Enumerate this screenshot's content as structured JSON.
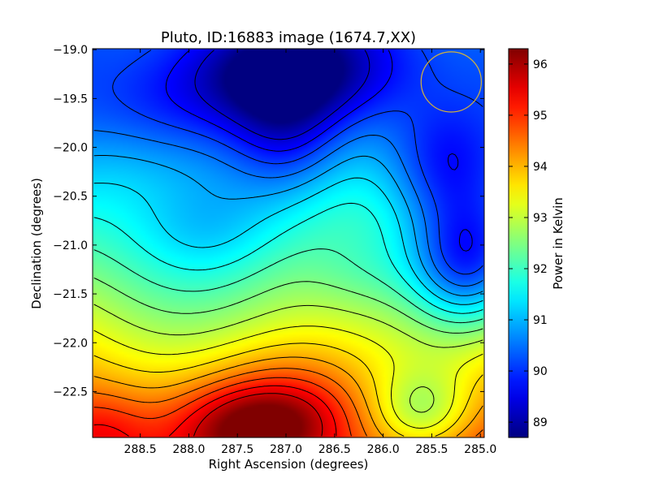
{
  "chart_data": {
    "type": "heatmap",
    "title": "Pluto, ID:16883 image (1674.7,XX)",
    "xlabel": "Right Ascension (degrees)",
    "ylabel": "Declination (degrees)",
    "colorbar_label": "Power in Kelvin",
    "x_range": [
      288.99,
      284.96
    ],
    "y_range": [
      -22.97,
      -18.99
    ],
    "x_ticks": [
      {
        "value": 288.5,
        "label": "288.5"
      },
      {
        "value": 288.0,
        "label": "288.0"
      },
      {
        "value": 287.5,
        "label": "287.5"
      },
      {
        "value": 287.0,
        "label": "287.0"
      },
      {
        "value": 286.5,
        "label": "286.5"
      },
      {
        "value": 286.0,
        "label": "286.0"
      },
      {
        "value": 285.5,
        "label": "285.5"
      },
      {
        "value": 285.0,
        "label": "285.0"
      }
    ],
    "y_ticks": [
      {
        "value": -19.0,
        "label": "−19.0"
      },
      {
        "value": -19.5,
        "label": "−19.5"
      },
      {
        "value": -20.0,
        "label": "−20.0"
      },
      {
        "value": -20.5,
        "label": "−20.5"
      },
      {
        "value": -21.0,
        "label": "−21.0"
      },
      {
        "value": -21.5,
        "label": "−21.5"
      },
      {
        "value": -22.0,
        "label": "−22.0"
      },
      {
        "value": -22.5,
        "label": "−22.5"
      }
    ],
    "colorbar_range": [
      88.7,
      96.3
    ],
    "colorbar_ticks": [
      {
        "value": 89,
        "label": "89"
      },
      {
        "value": 90,
        "label": "90"
      },
      {
        "value": 91,
        "label": "91"
      },
      {
        "value": 92,
        "label": "92"
      },
      {
        "value": 93,
        "label": "93"
      },
      {
        "value": 94,
        "label": "94"
      },
      {
        "value": 95,
        "label": "95"
      },
      {
        "value": 96,
        "label": "96"
      }
    ],
    "colormap": "jet",
    "contour_levels": [
      89.3,
      89.7,
      90.1,
      90.5,
      90.9,
      91.3,
      91.7,
      92.1,
      92.5,
      92.9,
      93.3,
      93.7,
      94.1,
      94.5,
      94.9,
      95.3,
      95.7
    ],
    "min_value": 88.7,
    "max_value": 96.3,
    "grid": false,
    "marker": {
      "type": "circle",
      "ra": 285.3,
      "dec": -19.33,
      "radius_deg": 0.31,
      "color": "#d4b43a"
    },
    "field_features": [
      {
        "type": "background_gradient",
        "top": 90.2,
        "bottom": 94.8
      },
      {
        "type": "peak",
        "ra": 287.25,
        "dec": -22.82,
        "value": 96.3,
        "sigma_ra": 0.55,
        "sigma_dec": 0.28
      },
      {
        "type": "peak",
        "ra": 288.9,
        "dec": -22.9,
        "value": 95.4,
        "sigma_ra": 0.35,
        "sigma_dec": 0.3
      },
      {
        "type": "peak",
        "ra": 286.9,
        "dec": -22.45,
        "value": 94.6,
        "sigma_ra": 0.6,
        "sigma_dec": 0.35
      },
      {
        "type": "trough",
        "ra": 287.0,
        "dec": -19.25,
        "value": 88.8,
        "sigma_ra": 0.75,
        "sigma_dec": 0.35
      },
      {
        "type": "trough",
        "ra": 287.0,
        "dec": -19.8,
        "value": 89.6,
        "sigma_ra": 0.4,
        "sigma_dec": 0.5
      },
      {
        "type": "trough",
        "ra": 285.4,
        "dec": -20.2,
        "value": 90.0,
        "sigma_ra": 0.4,
        "sigma_dec": 0.45
      },
      {
        "type": "trough",
        "ra": 285.15,
        "dec": -21.2,
        "value": 90.1,
        "sigma_ra": 0.4,
        "sigma_dec": 0.45
      },
      {
        "type": "trough",
        "ra": 288.3,
        "dec": -19.6,
        "value": 89.7,
        "sigma_ra": 0.7,
        "sigma_dec": 0.4
      },
      {
        "type": "bump",
        "ra": 287.8,
        "dec": -20.85,
        "value": 91.4,
        "sigma_ra": 0.5,
        "sigma_dec": 0.35
      },
      {
        "type": "bump",
        "ra": 286.2,
        "dec": -21.25,
        "value": 91.8,
        "sigma_ra": 0.45,
        "sigma_dec": 0.35
      },
      {
        "type": "bump",
        "ra": 285.6,
        "dec": -22.7,
        "value": 93.2,
        "sigma_ra": 0.35,
        "sigma_dec": 0.3
      }
    ]
  }
}
